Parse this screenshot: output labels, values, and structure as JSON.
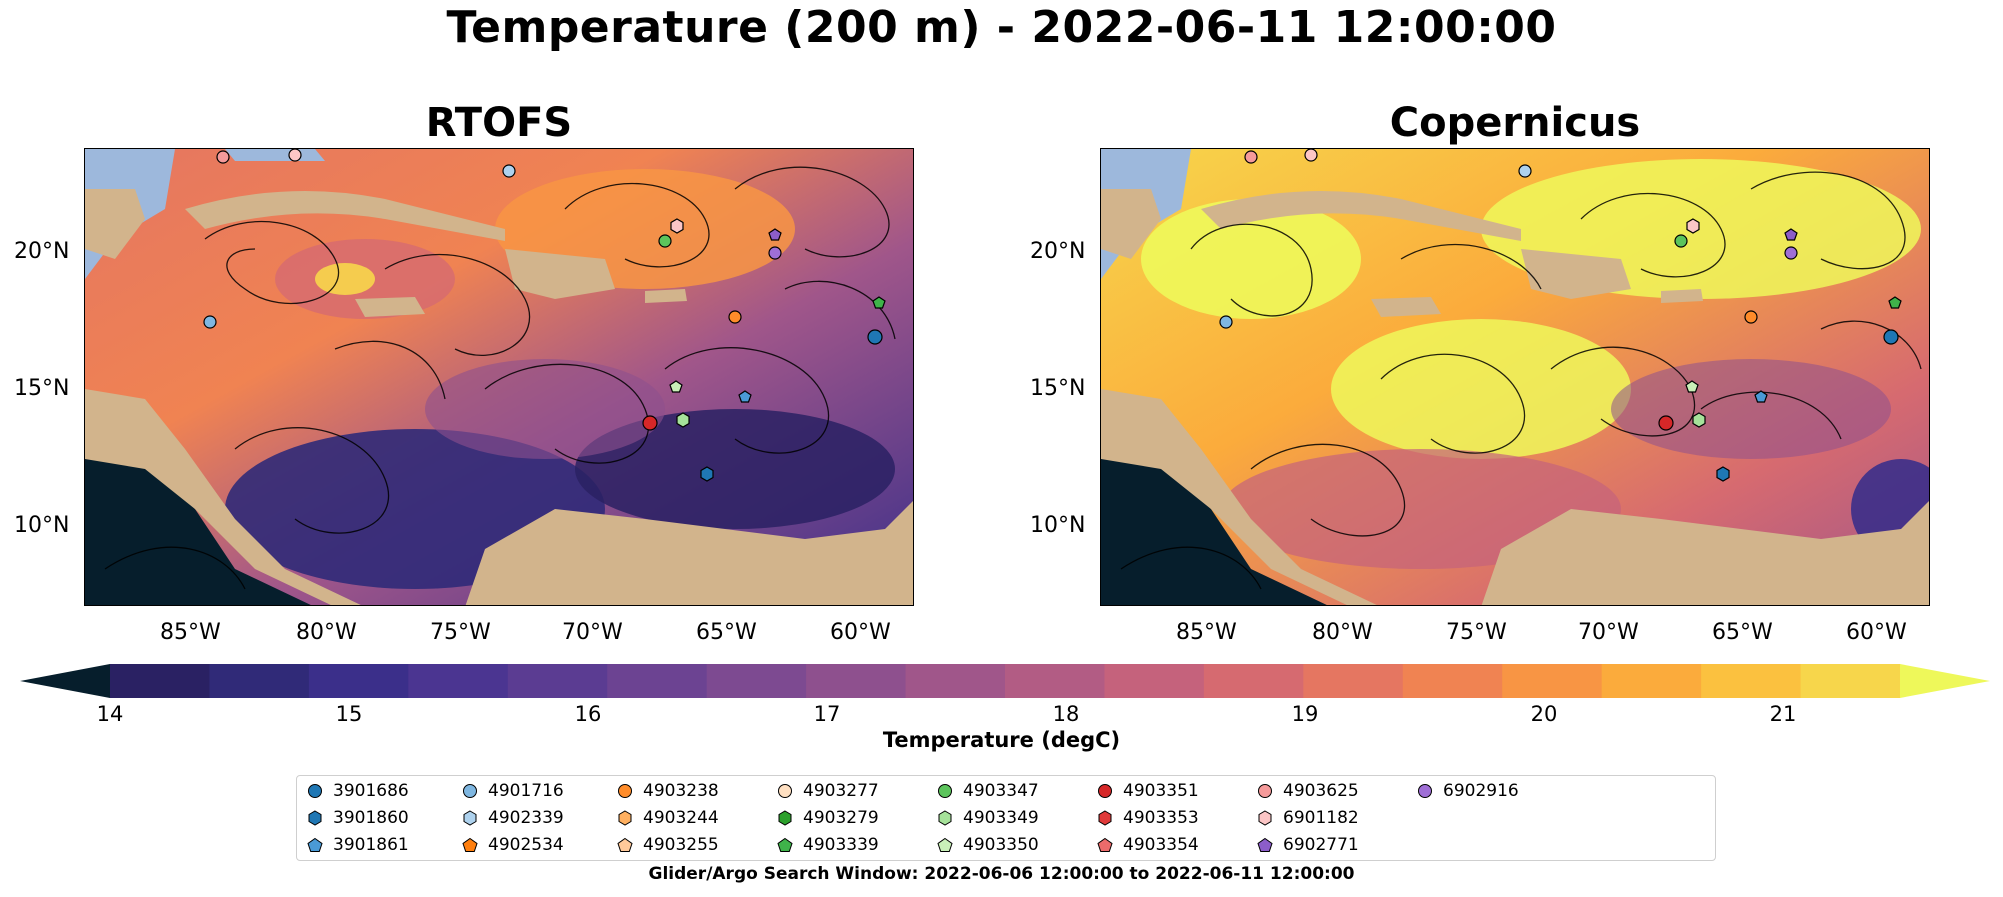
{
  "figure": {
    "title": "Temperature (200 m) - 2022-06-11 12:00:00",
    "search_window": "Glider/Argo Search Window: 2022-06-06 12:00:00 to 2022-06-11 12:00:00"
  },
  "panels": [
    {
      "title": "RTOFS"
    },
    {
      "title": "Copernicus"
    }
  ],
  "axes": {
    "lat_labels": [
      "20°N",
      "15°N",
      "10°N"
    ],
    "lon_labels": [
      "85°W",
      "80°W",
      "75°W",
      "70°W",
      "65°W",
      "60°W"
    ]
  },
  "colorbar": {
    "label": "Temperature (degC)",
    "ticks": [
      "14",
      "15",
      "16",
      "17",
      "18",
      "19",
      "20",
      "21"
    ],
    "colors": [
      "#2a2163",
      "#302a78",
      "#3b2f8a",
      "#4b3591",
      "#5b3c92",
      "#6c4392",
      "#7d4a91",
      "#8e508e",
      "#a0568a",
      "#b25c84",
      "#c5627c",
      "#d66a70",
      "#e57661",
      "#f08352",
      "#f89544",
      "#fbab3c",
      "#fbc13f",
      "#f7d64b"
    ],
    "under_color": "#061e2c",
    "over_color": "#eef85a"
  },
  "map_colors": {
    "land": "#d2b48c",
    "shelf": "#9db8dc",
    "deep_under": "#061e2c"
  },
  "legend": {
    "items": [
      {
        "id": "3901686",
        "marker": "circle",
        "color": "#1f77b4"
      },
      {
        "id": "3901860",
        "marker": "hexagon",
        "color": "#1f77b4"
      },
      {
        "id": "3901861",
        "marker": "pentagon",
        "color": "#4a9ad6"
      },
      {
        "id": "4901716",
        "marker": "circle",
        "color": "#7fb7e1"
      },
      {
        "id": "4902339",
        "marker": "hexagon",
        "color": "#aed2ee"
      },
      {
        "id": "4902534",
        "marker": "pentagon",
        "color": "#ff7f0e"
      },
      {
        "id": "4903238",
        "marker": "circle",
        "color": "#ff8c2a"
      },
      {
        "id": "4903244",
        "marker": "hexagon",
        "color": "#ffb060"
      },
      {
        "id": "4903255",
        "marker": "pentagon",
        "color": "#ffc99a"
      },
      {
        "id": "4903277",
        "marker": "circle",
        "color": "#ffe0c2"
      },
      {
        "id": "4903279",
        "marker": "hexagon",
        "color": "#2ca02c"
      },
      {
        "id": "4903339",
        "marker": "pentagon",
        "color": "#3fb34a"
      },
      {
        "id": "4903347",
        "marker": "circle",
        "color": "#5cc45c"
      },
      {
        "id": "4903349",
        "marker": "hexagon",
        "color": "#a6e29a"
      },
      {
        "id": "4903350",
        "marker": "pentagon",
        "color": "#c9f0b8"
      },
      {
        "id": "4903351",
        "marker": "circle",
        "color": "#d62728"
      },
      {
        "id": "4903353",
        "marker": "hexagon",
        "color": "#e03a3a"
      },
      {
        "id": "4903354",
        "marker": "pentagon",
        "color": "#ec6b6b"
      },
      {
        "id": "4903625",
        "marker": "circle",
        "color": "#f59a9a"
      },
      {
        "id": "6901182",
        "marker": "hexagon",
        "color": "#fcc6c6"
      },
      {
        "id": "6902771",
        "marker": "pentagon",
        "color": "#8c5dc9"
      },
      {
        "id": "6902916",
        "marker": "circle",
        "color": "#9f6fd6"
      }
    ]
  }
}
